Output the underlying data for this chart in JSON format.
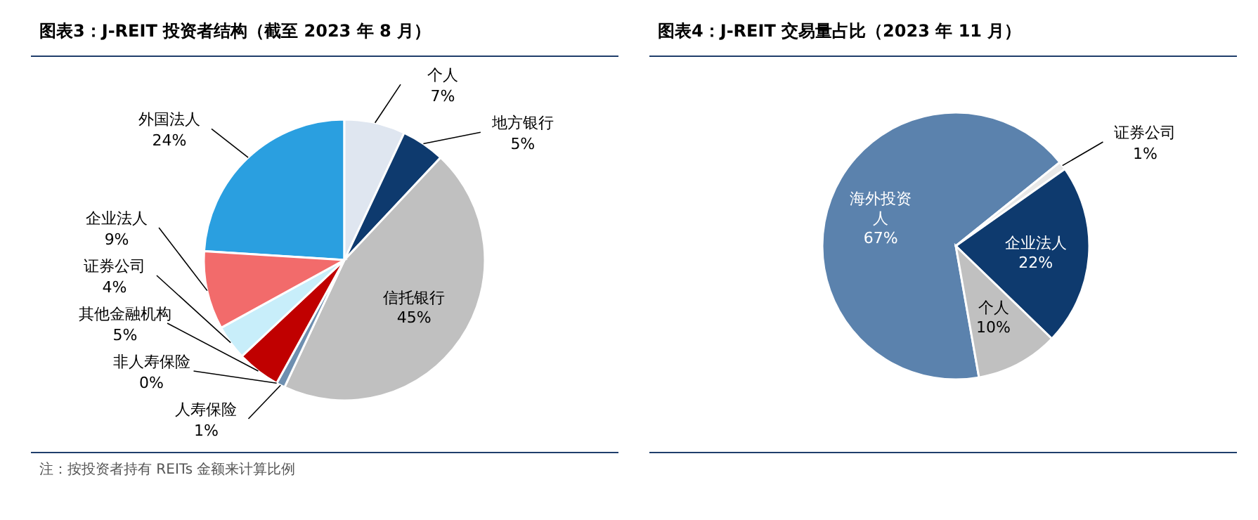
{
  "chart_data": [
    {
      "type": "pie",
      "title": "图表3：J-REIT 投资者结构（截至 2023 年 8 月）",
      "categories": [
        "外国法人",
        "个人",
        "地方银行",
        "信托银行",
        "人寿保险",
        "非人寿保险",
        "其他金融机构",
        "证券公司",
        "企业法人"
      ],
      "values": [
        24,
        7,
        5,
        45,
        1,
        0,
        5,
        4,
        9
      ],
      "value_labels": [
        "24%",
        "7%",
        "5%",
        "45%",
        "1%",
        "0%",
        "5%",
        "4%",
        "9%"
      ],
      "colors": [
        "#2a9fe0",
        "#dfe6f0",
        "#0e3a6e",
        "#c0c0c0",
        "#6e8fb0",
        "#9fb5cc",
        "#c00000",
        "#c8eefa",
        "#f26b6b"
      ],
      "annotations": [
        "注：按投资者持有 REITs 金额来计算比例"
      ]
    },
    {
      "type": "pie",
      "title": "图表4：J-REIT 交易量占比（2023 年 11 月）",
      "categories": [
        "海外投资人",
        "证券公司",
        "企业法人",
        "个人"
      ],
      "values": [
        67,
        1,
        22,
        10
      ],
      "value_labels": [
        "67%",
        "1%",
        "22%",
        "10%"
      ],
      "colors": [
        "#5b82ad",
        "#e8e8e8",
        "#0e3a6e",
        "#c0c0c0"
      ]
    }
  ]
}
